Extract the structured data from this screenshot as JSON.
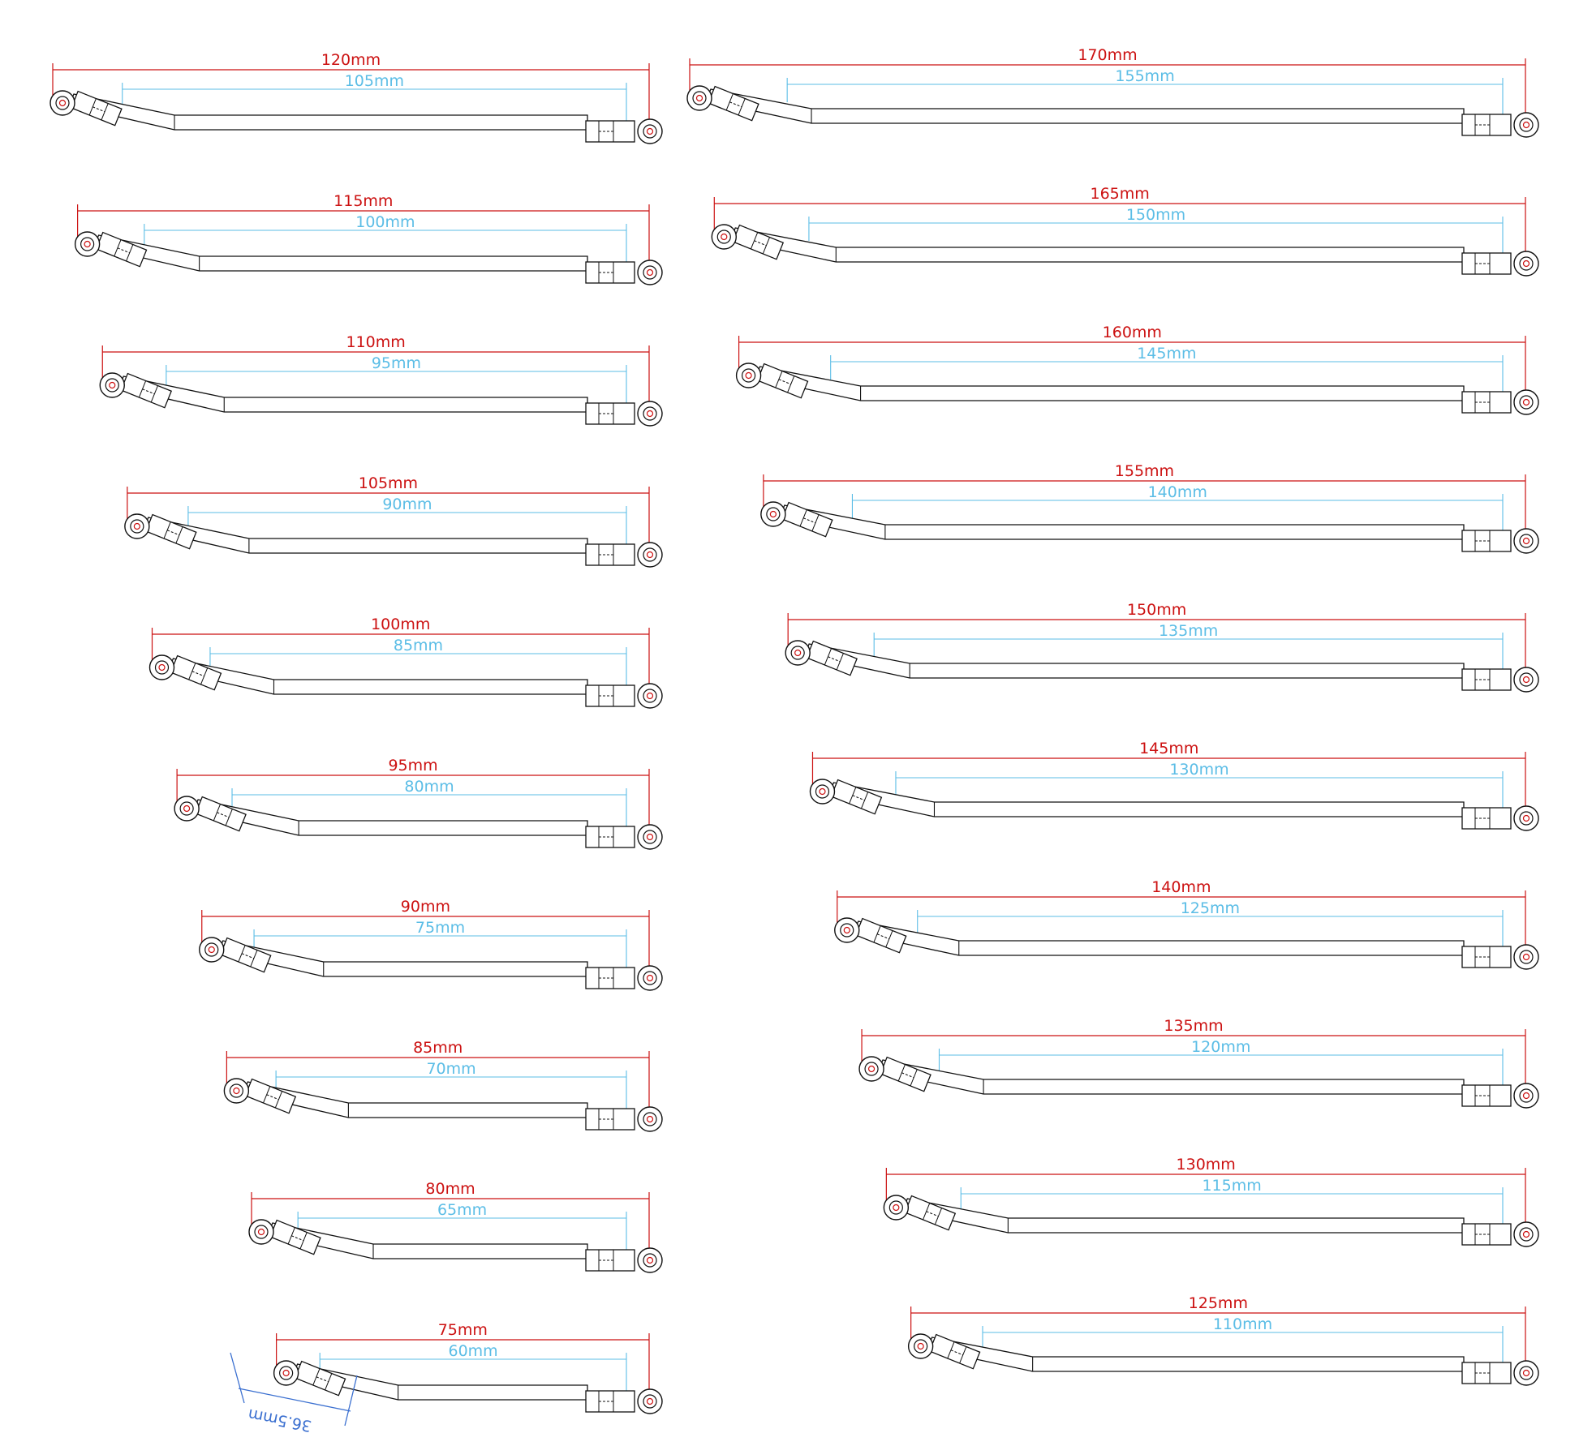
{
  "colors": {
    "outer_dimension": "#cc1111",
    "inner_dimension": "#5bbde6",
    "angled_dimension": "#3a6fd0",
    "part_outline": "#111111",
    "background": "#ffffff"
  },
  "left_column": [
    {
      "outer": "120mm",
      "inner": "105mm"
    },
    {
      "outer": "115mm",
      "inner": "100mm"
    },
    {
      "outer": "110mm",
      "inner": "95mm"
    },
    {
      "outer": "105mm",
      "inner": "90mm"
    },
    {
      "outer": "100mm",
      "inner": "85mm"
    },
    {
      "outer": "95mm",
      "inner": "80mm"
    },
    {
      "outer": "90mm",
      "inner": "75mm"
    },
    {
      "outer": "85mm",
      "inner": "70mm"
    },
    {
      "outer": "80mm",
      "inner": "65mm"
    },
    {
      "outer": "75mm",
      "inner": "60mm"
    }
  ],
  "right_column": [
    {
      "outer": "170mm",
      "inner": "155mm"
    },
    {
      "outer": "165mm",
      "inner": "150mm"
    },
    {
      "outer": "160mm",
      "inner": "145mm"
    },
    {
      "outer": "155mm",
      "inner": "140mm"
    },
    {
      "outer": "150mm",
      "inner": "135mm"
    },
    {
      "outer": "145mm",
      "inner": "130mm"
    },
    {
      "outer": "140mm",
      "inner": "125mm"
    },
    {
      "outer": "135mm",
      "inner": "120mm"
    },
    {
      "outer": "130mm",
      "inner": "115mm"
    },
    {
      "outer": "125mm",
      "inner": "110mm"
    }
  ],
  "angled_dimension_label": "36.5mm"
}
